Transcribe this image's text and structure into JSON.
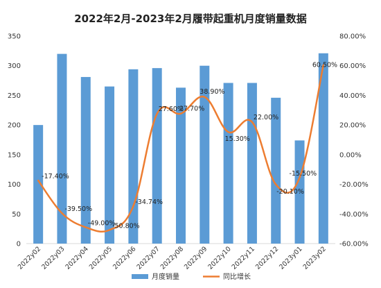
{
  "chart_data": {
    "type": "bar",
    "title": "2022年2月-2023年2月履带起重机月度销量数据",
    "categories": [
      "2022y02",
      "2022y03",
      "2022y04",
      "2022y05",
      "2022y06",
      "2022y07",
      "2022y08",
      "2022y09",
      "2022y10",
      "2022y11",
      "2022y12",
      "2023y01",
      "2023y02"
    ],
    "series": [
      {
        "name": "月度销量",
        "type": "bar",
        "axis": "left",
        "color": "#5b9bd5",
        "values": [
          200,
          320,
          281,
          265,
          294,
          296,
          263,
          300,
          271,
          271,
          246,
          174,
          321
        ]
      },
      {
        "name": "同比增长",
        "type": "line",
        "axis": "right",
        "color": "#ed7d31",
        "values": [
          -17.4,
          -39.5,
          -49.0,
          -50.8,
          -34.74,
          27.6,
          27.7,
          38.9,
          15.3,
          22.0,
          -20.1,
          -15.5,
          60.5
        ],
        "labels": [
          "-17.40%",
          "-39.50%",
          "-49.00%",
          "-50.80%",
          "-34.74%",
          "27.60%",
          "27.70%",
          "38.90%",
          "15.30%",
          "22.00%",
          "-20.10%",
          "-15.50%",
          "60.50%"
        ]
      }
    ],
    "y_left": {
      "ylim": [
        0,
        350
      ],
      "ticks": [
        "0",
        "50",
        "100",
        "150",
        "200",
        "250",
        "300",
        "350"
      ]
    },
    "y_right": {
      "ylim": [
        -60,
        80
      ],
      "ticks": [
        "-60.00%",
        "-40.00%",
        "-20.00%",
        "0.00%",
        "20.00%",
        "40.00%",
        "60.00%",
        "80.00%"
      ]
    },
    "grid": false,
    "legend_position": "bottom",
    "legend": [
      "月度销量",
      "同比增长"
    ]
  }
}
